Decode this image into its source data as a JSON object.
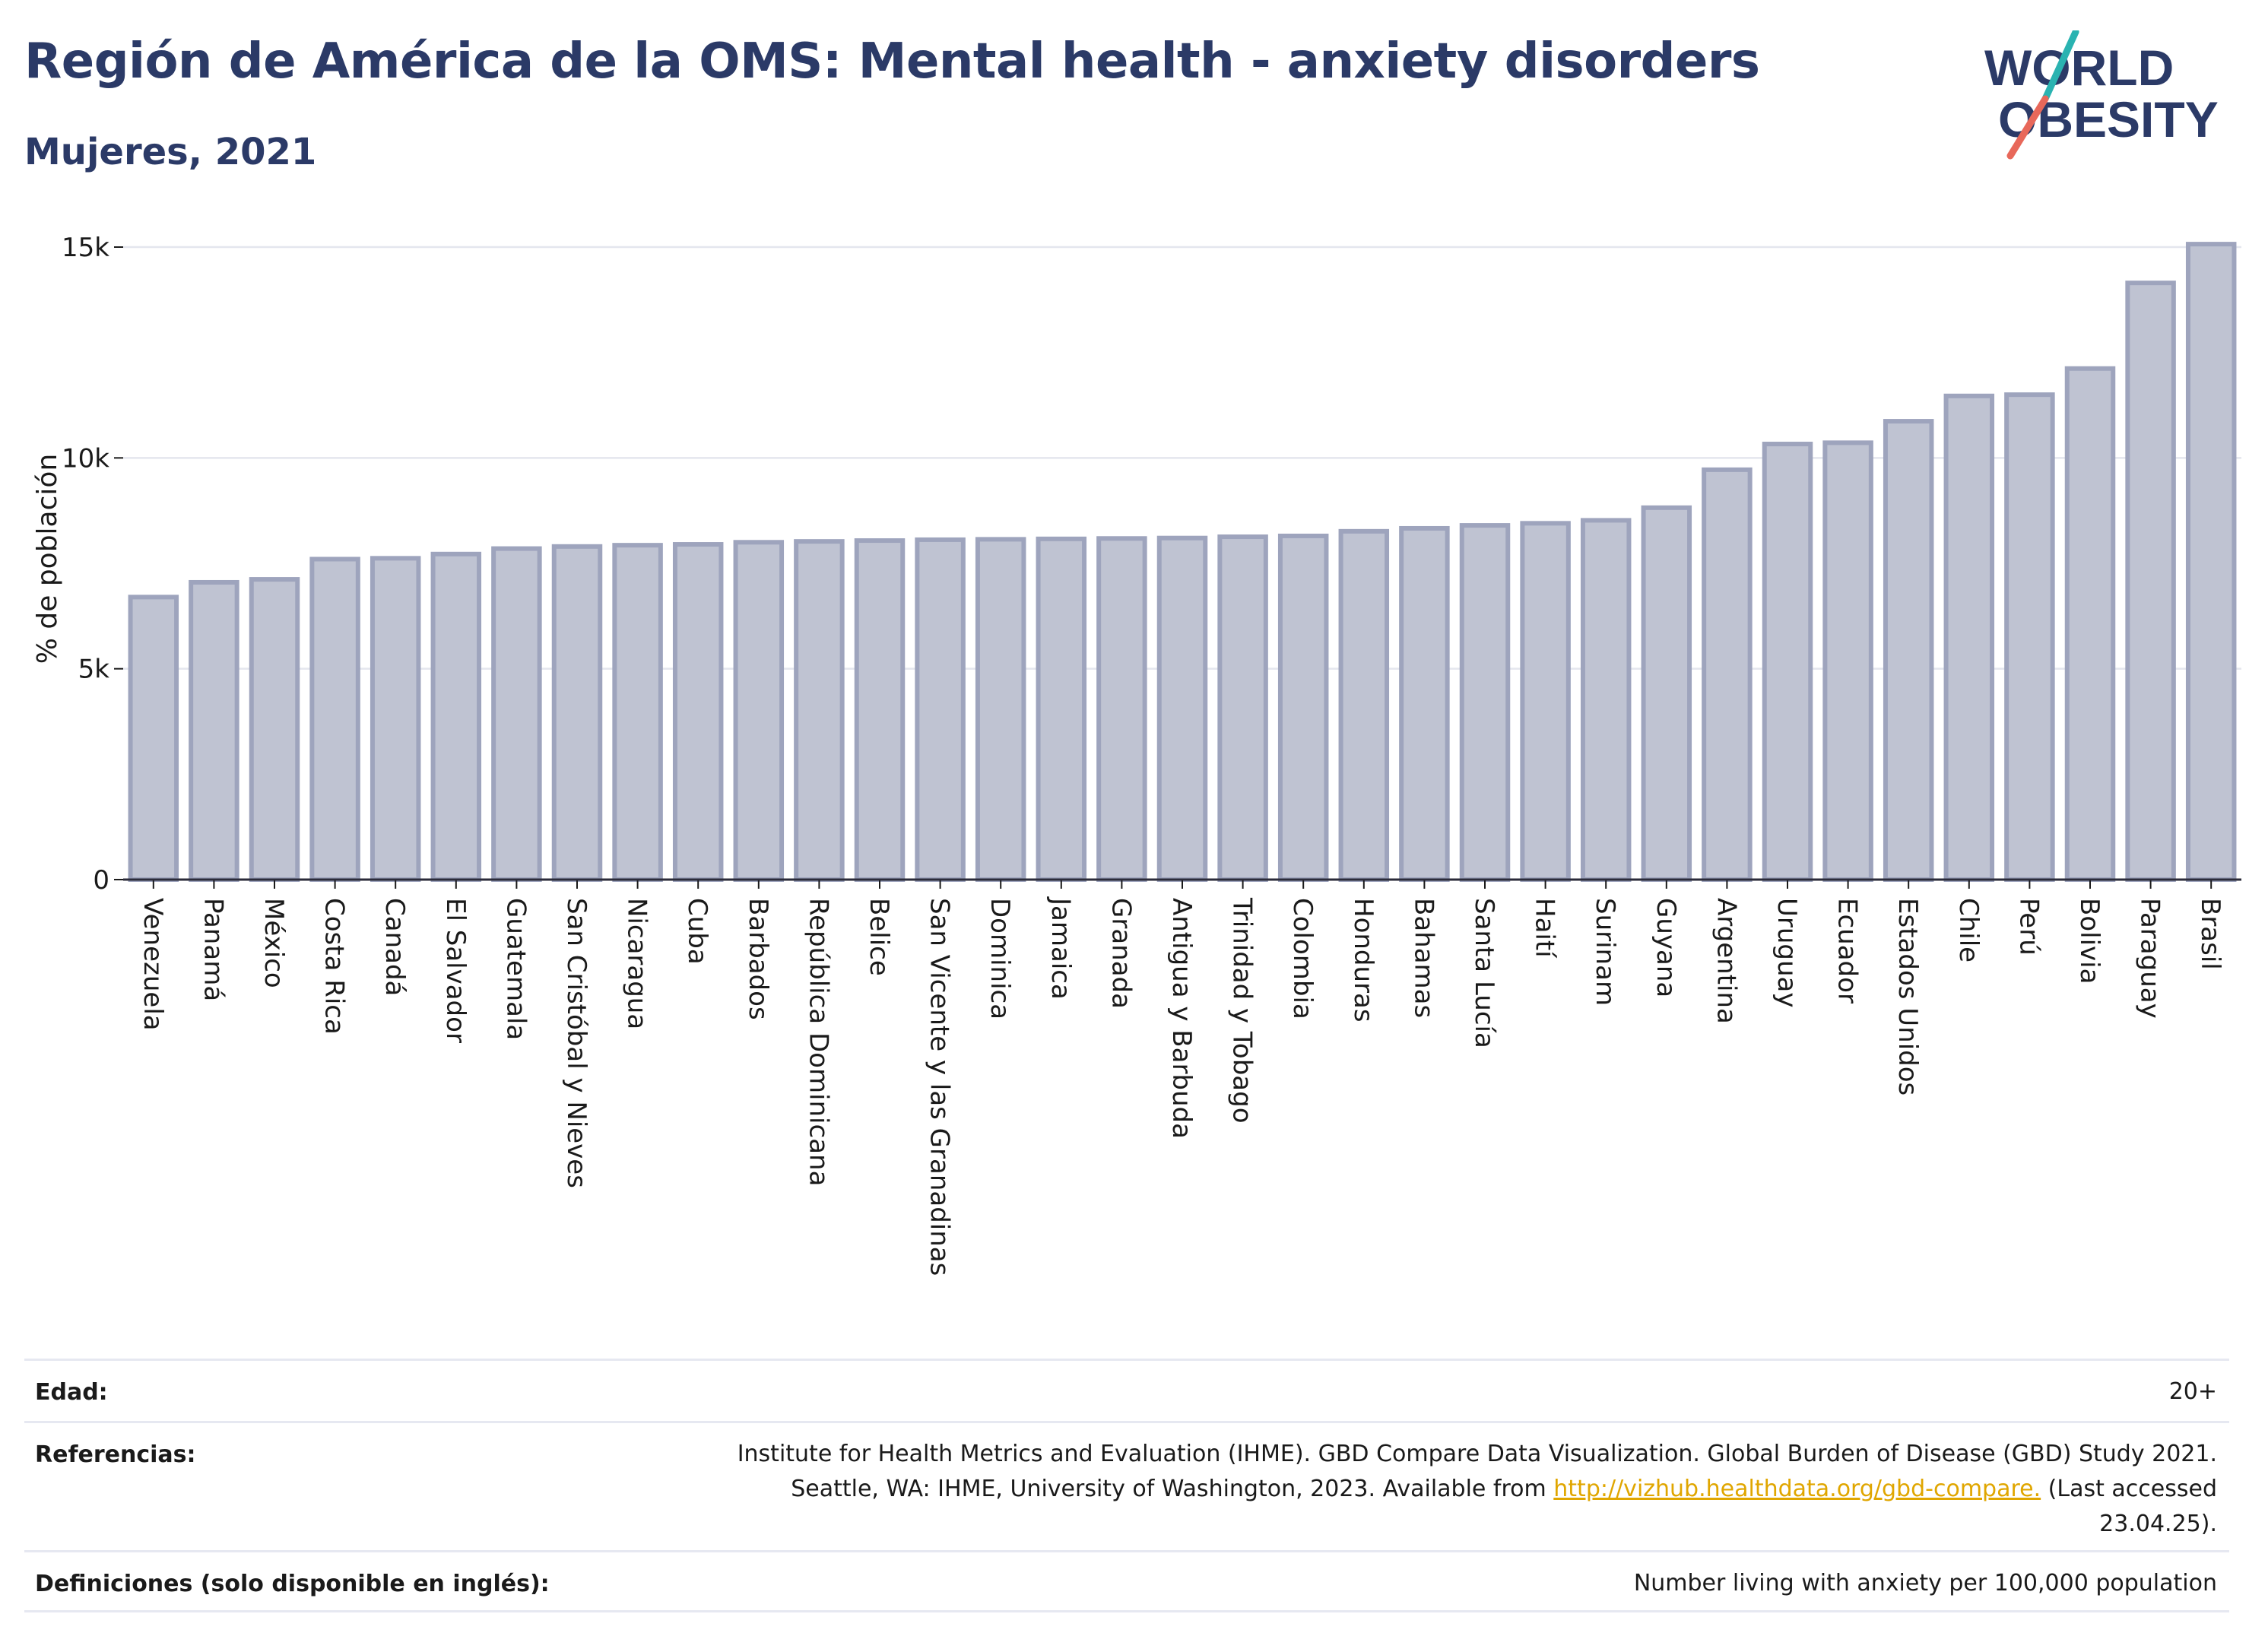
{
  "header": {
    "title": "Región de América de la OMS: Mental health - anxiety disorders",
    "subtitle": "Mujeres, 2021",
    "logo_line1": "WORLD",
    "logo_line2": "OBESITY"
  },
  "colors": {
    "title": "#2b3a67",
    "bar_fill": "#bfc3d2",
    "bar_stroke": "#9ea4bd",
    "logo_text": "#2b3a67",
    "logo_teal": "#2ab3b1",
    "logo_coral": "#e8685a",
    "link": "#e0a600"
  },
  "chart_data": {
    "type": "bar",
    "ylabel": "% de población",
    "xlabel": "",
    "ylim": [
      0,
      15000
    ],
    "yticks": [
      0,
      5000,
      10000,
      15000
    ],
    "ytick_labels": [
      "0",
      "5k",
      "10k",
      "15k"
    ],
    "grid": true,
    "categories": [
      "Venezuela",
      "Panamá",
      "México",
      "Costa Rica",
      "Canadá",
      "El Salvador",
      "Guatemala",
      "San Cristóbal y Nieves",
      "Nicaragua",
      "Cuba",
      "Barbados",
      "República Dominicana",
      "Belice",
      "San Vicente y las Granadinas",
      "Dominica",
      "Jamaica",
      "Granada",
      "Antigua y Barbuda",
      "Trinidad y Tobago",
      "Colombia",
      "Honduras",
      "Bahamas",
      "Santa Lucía",
      "Haití",
      "Surinam",
      "Guyana",
      "Argentina",
      "Uruguay",
      "Ecuador",
      "Estados Unidos",
      "Chile",
      "Perú",
      "Bolivia",
      "Paraguay",
      "Brasil"
    ],
    "values": [
      6700,
      7050,
      7120,
      7600,
      7620,
      7720,
      7850,
      7900,
      7930,
      7950,
      8000,
      8020,
      8040,
      8060,
      8070,
      8080,
      8090,
      8100,
      8130,
      8150,
      8260,
      8330,
      8400,
      8450,
      8520,
      8820,
      9720,
      10330,
      10360,
      10870,
      11470,
      11500,
      12120,
      14150,
      15070
    ]
  },
  "info": {
    "age_label": "Edad:",
    "age_value": "20+",
    "references_label": "Referencias:",
    "references_line1": "Institute for Health Metrics and Evaluation (IHME). GBD Compare Data Visualization. Global Burden of Disease (GBD) Study 2021.",
    "references_line2_pre": "Seattle, WA: IHME, University of Washington, 2023. Available from ",
    "references_link": "http://vizhub.healthdata.org/gbd-compare.",
    "references_line2_post": " (Last accessed",
    "references_line3": "23.04.25).",
    "definitions_label": "Definiciones (solo disponible en inglés):",
    "definitions_value": "Number living with anxiety per 100,000 population"
  }
}
